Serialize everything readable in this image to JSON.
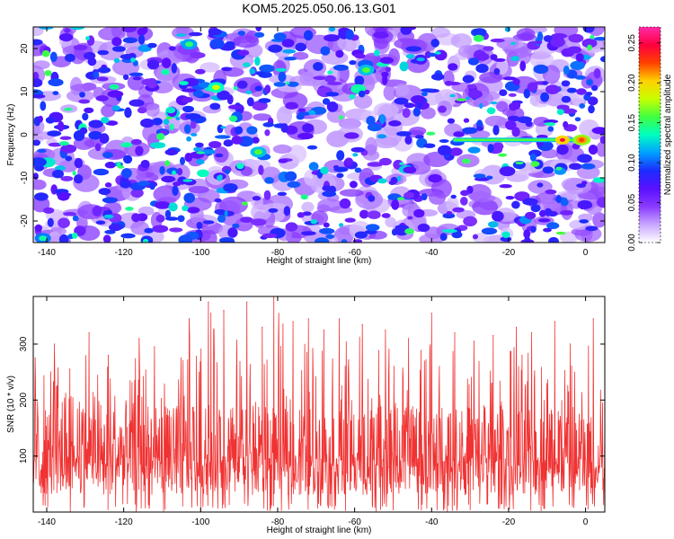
{
  "title": "KOM5.2025.050.06.13.G01",
  "chart_data": [
    {
      "type": "heatmap",
      "xlabel": "Height of straight line (km)",
      "ylabel": "Frequency (Hz)",
      "xlim": [
        -143.5,
        5
      ],
      "ylim": [
        -25,
        25
      ],
      "x_ticks": [
        -140,
        -120,
        -100,
        -80,
        -60,
        -40,
        -20,
        0
      ],
      "y_ticks": [
        -20,
        -10,
        0,
        10,
        20
      ],
      "background_description": "Dense noise-like field of blobs, mostly violet/purple/blue with occasional cyan-green spots; white gaps between blobs",
      "colorbar": {
        "label": "Normalized spectral amplitude",
        "range": [
          0,
          0.27
        ],
        "ticks": [
          0,
          0.05,
          0.1,
          0.15,
          0.2,
          0.25
        ],
        "tick_labels": [
          "0.00",
          "0.05",
          "0.10",
          "0.15",
          "0.20",
          "0.25"
        ],
        "colors": [
          "#ffffff",
          "#c8a6ff",
          "#8a3bff",
          "#5a10ff",
          "#1c2cff",
          "#00a0ff",
          "#00ffc0",
          "#40ff40",
          "#c8ff00",
          "#ffd000",
          "#ff4000",
          "#ff0040",
          "#ff2aa8"
        ]
      },
      "features": [
        {
          "label": "trace",
          "x_range": [
            -34,
            0
          ],
          "y": -1.2,
          "peak_x": -1,
          "peak_value": 0.26,
          "color": "#ff4000"
        },
        {
          "label": "hotspot",
          "x": -96,
          "y": 11,
          "value": 0.18
        },
        {
          "label": "hotspot",
          "x": -57,
          "y": 15,
          "value": 0.16
        },
        {
          "label": "hotspot",
          "x": -103,
          "y": 21,
          "value": 0.15
        },
        {
          "label": "hotspot",
          "x": -85,
          "y": -4,
          "value": 0.16
        },
        {
          "label": "hotspot",
          "x": -141,
          "y": -24,
          "value": 0.14
        }
      ]
    },
    {
      "type": "line",
      "color": "#f03232",
      "xlabel": "Height of straight line (km)",
      "ylabel": "SNR (10 * v/v)",
      "xlim": [
        -143.5,
        5
      ],
      "ylim": [
        0,
        385
      ],
      "x_ticks": [
        -140,
        -120,
        -100,
        -80,
        -60,
        -40,
        -20,
        0
      ],
      "y_ticks": [
        100,
        200,
        300
      ],
      "approx_mean": 110,
      "approx_min": 0,
      "approx_max": 385,
      "peaks": [
        {
          "x": -143,
          "y": 275
        },
        {
          "x": -138,
          "y": 300
        },
        {
          "x": -134,
          "y": 255
        },
        {
          "x": -129,
          "y": 320
        },
        {
          "x": -124,
          "y": 280
        },
        {
          "x": -116,
          "y": 310
        },
        {
          "x": -112,
          "y": 295
        },
        {
          "x": -103,
          "y": 345
        },
        {
          "x": -98,
          "y": 375
        },
        {
          "x": -94,
          "y": 360
        },
        {
          "x": -88,
          "y": 375
        },
        {
          "x": -84,
          "y": 330
        },
        {
          "x": -81,
          "y": 385
        },
        {
          "x": -76,
          "y": 340
        },
        {
          "x": -72,
          "y": 345
        },
        {
          "x": -68,
          "y": 325
        },
        {
          "x": -64,
          "y": 345
        },
        {
          "x": -58,
          "y": 335
        },
        {
          "x": -52,
          "y": 325
        },
        {
          "x": -46,
          "y": 310
        },
        {
          "x": -40,
          "y": 355
        },
        {
          "x": -34,
          "y": 320
        },
        {
          "x": -29,
          "y": 305
        },
        {
          "x": -24,
          "y": 315
        },
        {
          "x": -18,
          "y": 330
        },
        {
          "x": -14,
          "y": 320
        },
        {
          "x": -8,
          "y": 340
        },
        {
          "x": -4,
          "y": 300
        },
        {
          "x": 2,
          "y": 345
        }
      ]
    }
  ]
}
